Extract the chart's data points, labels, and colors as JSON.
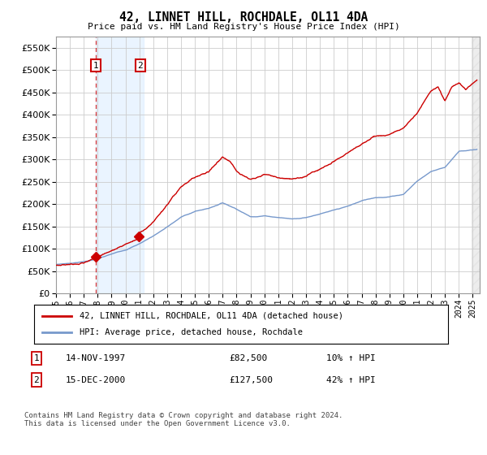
{
  "title": "42, LINNET HILL, ROCHDALE, OL11 4DA",
  "subtitle": "Price paid vs. HM Land Registry's House Price Index (HPI)",
  "ylim": [
    0,
    575000
  ],
  "yticks": [
    0,
    50000,
    100000,
    150000,
    200000,
    250000,
    300000,
    350000,
    400000,
    450000,
    500000,
    550000
  ],
  "xlim_start": 1995.0,
  "xlim_end": 2025.5,
  "purchase1_date": 1997.87,
  "purchase1_price": 82500,
  "purchase1_label": "1",
  "purchase1_date_str": "14-NOV-1997",
  "purchase1_pct": "10%",
  "purchase2_date": 2000.96,
  "purchase2_price": 127500,
  "purchase2_label": "2",
  "purchase2_date_str": "15-DEC-2000",
  "purchase2_pct": "42%",
  "legend_line1": "42, LINNET HILL, ROCHDALE, OL11 4DA (detached house)",
  "legend_line2": "HPI: Average price, detached house, Rochdale",
  "footer": "Contains HM Land Registry data © Crown copyright and database right 2024.\nThis data is licensed under the Open Government Licence v3.0.",
  "grid_color": "#cccccc",
  "background_color": "#ffffff",
  "shading_color": "#ddeeff",
  "hpi_color": "#7799cc",
  "price_color": "#cc0000"
}
